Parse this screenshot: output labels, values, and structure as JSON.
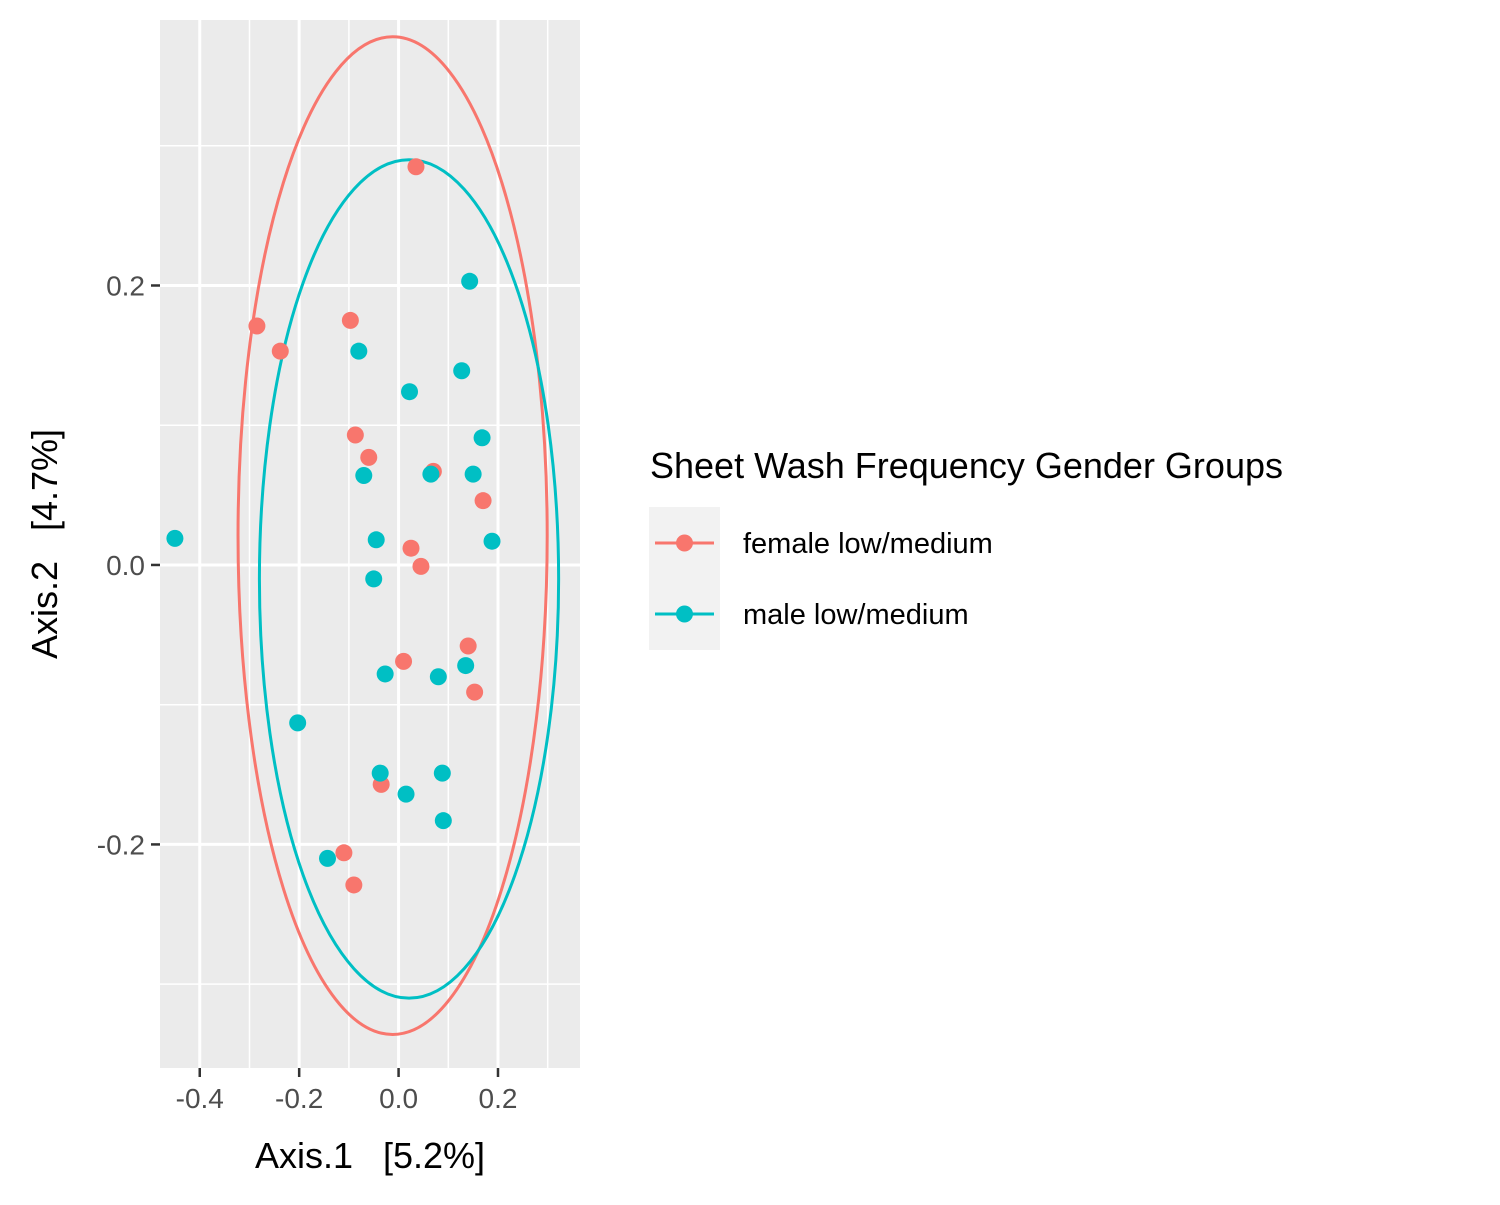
{
  "chart_data": {
    "type": "scatter",
    "title": "",
    "xlabel": "Axis.1   [5.2%]",
    "ylabel": "Axis.2   [4.7%]",
    "xlim": [
      -0.48,
      0.365
    ],
    "ylim": [
      -0.36,
      0.39
    ],
    "x_ticks": [
      -0.4,
      -0.2,
      0.0,
      0.2
    ],
    "x_tick_labels": [
      "-0.4",
      "-0.2",
      "0.0",
      "0.2"
    ],
    "y_ticks": [
      -0.2,
      0.0,
      0.2
    ],
    "y_tick_labels": [
      "-0.2",
      "0.0",
      "0.2"
    ],
    "grid": true,
    "legend": {
      "title": "Sheet Wash Frequency Gender Groups",
      "position": "right"
    },
    "series": [
      {
        "name": "female low/medium",
        "color": "#F8766D",
        "points": [
          [
            0.035,
            0.285
          ],
          [
            -0.285,
            0.171
          ],
          [
            -0.238,
            0.153
          ],
          [
            -0.097,
            0.175
          ],
          [
            -0.087,
            0.093
          ],
          [
            -0.06,
            0.077
          ],
          [
            0.07,
            0.067
          ],
          [
            0.17,
            0.046
          ],
          [
            0.025,
            0.012
          ],
          [
            0.045,
            -0.001
          ],
          [
            0.14,
            -0.058
          ],
          [
            0.01,
            -0.069
          ],
          [
            0.153,
            -0.091
          ],
          [
            -0.035,
            -0.157
          ],
          [
            -0.11,
            -0.206
          ],
          [
            -0.09,
            -0.229
          ]
        ],
        "ellipse": {
          "cx": -0.012,
          "cy": 0.021,
          "rx": 0.311,
          "ry": 0.357,
          "angle_deg": 0
        }
      },
      {
        "name": "male low/medium",
        "color": "#00BFC4",
        "points": [
          [
            0.143,
            0.203
          ],
          [
            -0.08,
            0.153
          ],
          [
            0.127,
            0.139
          ],
          [
            0.022,
            0.124
          ],
          [
            0.168,
            0.091
          ],
          [
            -0.07,
            0.064
          ],
          [
            0.065,
            0.065
          ],
          [
            0.15,
            0.065
          ],
          [
            -0.45,
            0.019
          ],
          [
            -0.045,
            0.018
          ],
          [
            0.188,
            0.017
          ],
          [
            -0.05,
            -0.01
          ],
          [
            0.135,
            -0.072
          ],
          [
            -0.027,
            -0.078
          ],
          [
            0.08,
            -0.08
          ],
          [
            -0.203,
            -0.113
          ],
          [
            -0.037,
            -0.149
          ],
          [
            0.088,
            -0.149
          ],
          [
            0.015,
            -0.164
          ],
          [
            0.09,
            -0.183
          ],
          [
            -0.143,
            -0.21
          ]
        ],
        "ellipse": {
          "cx": 0.021,
          "cy": -0.01,
          "rx": 0.301,
          "ry": 0.3,
          "angle_deg": 0
        }
      }
    ]
  }
}
